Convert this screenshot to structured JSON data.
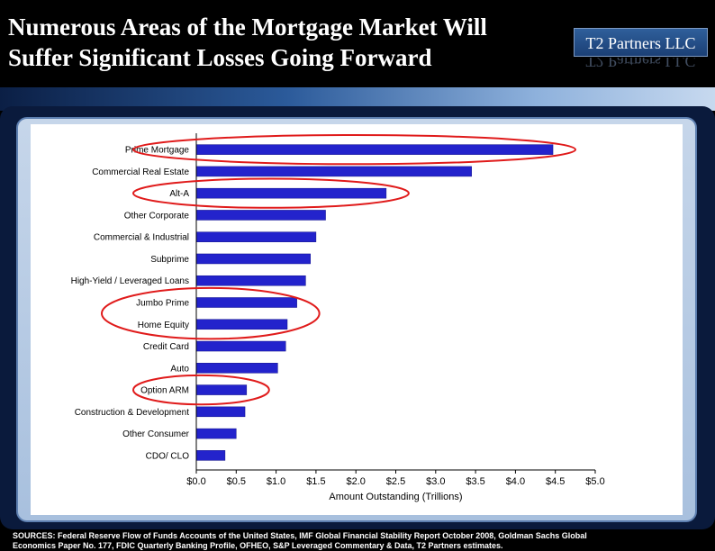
{
  "header": {
    "title_line1": "Numerous Areas of the Mortgage Market Will",
    "title_line2": "Suffer Significant Losses Going Forward",
    "logo": "T2 Partners LLC"
  },
  "footer": {
    "sources": "SOURCES: Federal Reserve Flow of Funds Accounts of the United States, IMF Global Financial Stability Report October 2008, Goldman Sachs Global",
    "sources_line2": "Economics Paper No. 177, FDIC Quarterly Banking Profile, OFHEO, S&P Leveraged Commentary & Data, T2 Partners estimates."
  },
  "chart_data": {
    "type": "bar",
    "orientation": "horizontal",
    "categories": [
      "Prime Mortgage",
      "Commercial Real Estate",
      "Alt-A",
      "Other Corporate",
      "Commercial & Industrial",
      "Subprime",
      "High-Yield / Leveraged Loans",
      "Jumbo Prime",
      "Home Equity",
      "Credit Card",
      "Auto",
      "Option ARM",
      "Construction & Development",
      "Other Consumer",
      "CDO/ CLO"
    ],
    "values": [
      4.47,
      3.45,
      2.38,
      1.62,
      1.5,
      1.43,
      1.37,
      1.26,
      1.14,
      1.12,
      1.02,
      0.63,
      0.61,
      0.5,
      0.36
    ],
    "xlabel": "Amount Outstanding (Trillions)",
    "xticks": [
      "$0.0",
      "$0.5",
      "$1.0",
      "$1.5",
      "$2.0",
      "$2.5",
      "$3.0",
      "$3.5",
      "$4.0",
      "$4.5",
      "$5.0"
    ],
    "xlim": [
      0,
      5
    ],
    "grid": false,
    "bar_color": "#2323cc",
    "highlight_color": "#e01b1b",
    "highlighted_groups": [
      [
        "Prime Mortgage"
      ],
      [
        "Alt-A"
      ],
      [
        "Jumbo Prime",
        "Home Equity"
      ],
      [
        "Option ARM"
      ]
    ]
  }
}
